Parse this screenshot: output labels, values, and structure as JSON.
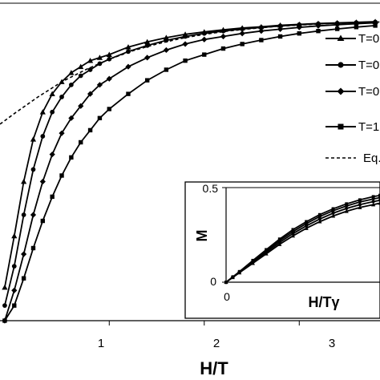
{
  "chart_data": [
    {
      "type": "line",
      "title": "",
      "xlabel": "H/T",
      "ylabel": "",
      "xlim": [
        -0.15,
        3.85
      ],
      "ylim": [
        0,
        1.05
      ],
      "x_ticks": [
        "1",
        "2",
        "3"
      ],
      "legend_position": "top-right",
      "legend": [
        "T=0",
        "T=0",
        "T=0",
        "T=1",
        "Eq."
      ],
      "series": [
        {
          "name": "T=0",
          "marker": "triangle",
          "x": [
            -0.1,
            0,
            0.1,
            0.2,
            0.3,
            0.4,
            0.5,
            0.6,
            0.7,
            0.8,
            0.9,
            1,
            1.2,
            1.4,
            1.6,
            1.8,
            2,
            2.2,
            2.4,
            2.6,
            2.8,
            3,
            3.2,
            3.4,
            3.6,
            3.8
          ],
          "y": [
            0.11,
            0.28,
            0.46,
            0.6,
            0.69,
            0.75,
            0.79,
            0.82,
            0.84,
            0.86,
            0.87,
            0.88,
            0.905,
            0.922,
            0.936,
            0.947,
            0.955,
            0.962,
            0.968,
            0.972,
            0.977,
            0.98,
            0.983,
            0.985,
            0.987,
            0.989
          ]
        },
        {
          "name": "T=0",
          "marker": "circle",
          "x": [
            -0.1,
            0,
            0.1,
            0.2,
            0.3,
            0.4,
            0.5,
            0.6,
            0.7,
            0.8,
            0.9,
            1,
            1.2,
            1.4,
            1.6,
            1.8,
            2,
            2.2,
            2.4,
            2.6,
            2.8,
            3,
            3.2,
            3.4,
            3.6,
            3.8
          ],
          "y": [
            0.05,
            0.18,
            0.35,
            0.5,
            0.61,
            0.69,
            0.74,
            0.78,
            0.81,
            0.83,
            0.85,
            0.865,
            0.89,
            0.91,
            0.927,
            0.94,
            0.95,
            0.958,
            0.965,
            0.97,
            0.975,
            0.979,
            0.982,
            0.984,
            0.986,
            0.988
          ]
        },
        {
          "name": "T=0",
          "marker": "diamond",
          "x": [
            -0.1,
            0,
            0.1,
            0.2,
            0.3,
            0.4,
            0.5,
            0.6,
            0.7,
            0.8,
            0.9,
            1,
            1.2,
            1.4,
            1.6,
            1.8,
            2,
            2.2,
            2.4,
            2.6,
            2.8,
            3,
            3.2,
            3.4,
            3.6,
            3.8
          ],
          "y": [
            0.0,
            0.1,
            0.22,
            0.35,
            0.46,
            0.55,
            0.62,
            0.67,
            0.71,
            0.75,
            0.78,
            0.8,
            0.84,
            0.87,
            0.895,
            0.915,
            0.93,
            0.94,
            0.95,
            0.958,
            0.964,
            0.97,
            0.975,
            0.979,
            0.982,
            0.985
          ]
        },
        {
          "name": "T=1",
          "marker": "square",
          "x": [
            -0.1,
            0,
            0.1,
            0.2,
            0.3,
            0.4,
            0.5,
            0.6,
            0.7,
            0.8,
            0.9,
            1,
            1.2,
            1.4,
            1.6,
            1.8,
            2,
            2.2,
            2.4,
            2.6,
            2.8,
            3,
            3.2,
            3.4,
            3.6,
            3.8
          ],
          "y": [
            0.0,
            0.05,
            0.14,
            0.24,
            0.33,
            0.41,
            0.48,
            0.54,
            0.59,
            0.63,
            0.67,
            0.7,
            0.75,
            0.795,
            0.83,
            0.86,
            0.88,
            0.9,
            0.915,
            0.928,
            0.94,
            0.95,
            0.958,
            0.965,
            0.971,
            0.976
          ]
        },
        {
          "name": "Eq.",
          "marker": "none",
          "dashed": true,
          "x": [
            -0.15,
            0,
            0.25,
            0.5,
            0.75,
            1,
            1.25,
            1.5,
            1.75,
            2,
            2.25,
            2.5,
            2.75,
            3,
            3.25,
            3.5,
            3.85
          ],
          "y": [
            0.65,
            0.685,
            0.74,
            0.79,
            0.83,
            0.865,
            0.893,
            0.915,
            0.933,
            0.947,
            0.958,
            0.966,
            0.973,
            0.978,
            0.982,
            0.985,
            0.988
          ]
        }
      ]
    },
    {
      "type": "line",
      "title": "",
      "xlabel": "H/Tγ",
      "ylabel": "M",
      "xlim": [
        0,
        1.15
      ],
      "ylim": [
        0,
        0.5
      ],
      "x_ticks": [
        "0"
      ],
      "y_ticks": [
        "0",
        "0.5"
      ],
      "series": [
        {
          "marker": "triangle",
          "x": [
            0,
            0.05,
            0.1,
            0.2,
            0.3,
            0.4,
            0.5,
            0.6,
            0.7,
            0.8,
            0.9,
            1,
            1.1,
            1.15
          ],
          "y": [
            0,
            0.025,
            0.05,
            0.1,
            0.15,
            0.2,
            0.245,
            0.285,
            0.32,
            0.35,
            0.375,
            0.395,
            0.41,
            0.418
          ]
        },
        {
          "marker": "circle",
          "x": [
            0,
            0.05,
            0.1,
            0.2,
            0.3,
            0.4,
            0.5,
            0.6,
            0.7,
            0.8,
            0.9,
            1,
            1.1,
            1.15
          ],
          "y": [
            0,
            0.026,
            0.052,
            0.105,
            0.158,
            0.21,
            0.257,
            0.298,
            0.334,
            0.365,
            0.39,
            0.41,
            0.426,
            0.433
          ]
        },
        {
          "marker": "diamond",
          "x": [
            0,
            0.05,
            0.1,
            0.2,
            0.3,
            0.4,
            0.5,
            0.6,
            0.7,
            0.8,
            0.9,
            1,
            1.1,
            1.15
          ],
          "y": [
            0,
            0.027,
            0.054,
            0.11,
            0.165,
            0.22,
            0.268,
            0.31,
            0.347,
            0.378,
            0.403,
            0.424,
            0.44,
            0.447
          ]
        },
        {
          "marker": "square",
          "x": [
            0,
            0.05,
            0.1,
            0.2,
            0.3,
            0.4,
            0.5,
            0.6,
            0.7,
            0.8,
            0.9,
            1,
            1.1,
            1.15
          ],
          "y": [
            0,
            0.028,
            0.056,
            0.115,
            0.172,
            0.228,
            0.278,
            0.32,
            0.357,
            0.388,
            0.414,
            0.435,
            0.452,
            0.459
          ]
        }
      ]
    }
  ]
}
